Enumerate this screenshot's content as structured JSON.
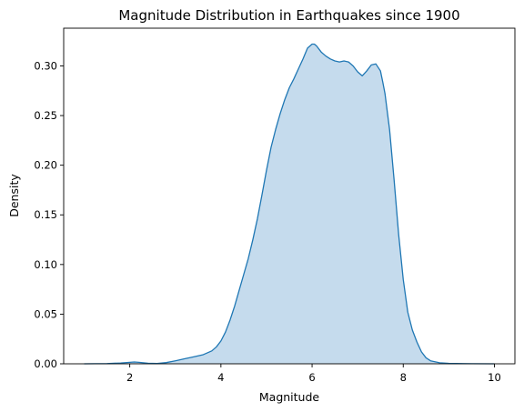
{
  "chart_data": {
    "type": "area",
    "title": "Magnitude Distribution in Earthquakes since 1900",
    "xlabel": "Magnitude",
    "ylabel": "Density",
    "xlim": [
      0.55,
      10.45
    ],
    "ylim": [
      0,
      0.338
    ],
    "xticks": [
      2,
      4,
      6,
      8,
      10
    ],
    "yticks": [
      0.0,
      0.05,
      0.1,
      0.15,
      0.2,
      0.25,
      0.3
    ],
    "xtick_labels": [
      "2",
      "4",
      "6",
      "8",
      "10"
    ],
    "ytick_labels": [
      "0.00",
      "0.05",
      "0.10",
      "0.15",
      "0.20",
      "0.25",
      "0.30"
    ],
    "grid": false,
    "legend": "none",
    "line_color": "#1f77b4",
    "fill_color": "#c5dbed",
    "series": [
      {
        "x": [
          1.0,
          1.5,
          1.8,
          2.0,
          2.1,
          2.2,
          2.4,
          2.6,
          2.8,
          3.0,
          3.2,
          3.4,
          3.6,
          3.8,
          3.9,
          4.0,
          4.1,
          4.2,
          4.3,
          4.4,
          4.5,
          4.6,
          4.7,
          4.8,
          4.9,
          5.0,
          5.1,
          5.2,
          5.3,
          5.4,
          5.5,
          5.6,
          5.7,
          5.8,
          5.9,
          6.0,
          6.05,
          6.1,
          6.2,
          6.3,
          6.4,
          6.5,
          6.6,
          6.7,
          6.8,
          6.9,
          7.0,
          7.1,
          7.2,
          7.3,
          7.4,
          7.5,
          7.55,
          7.6,
          7.7,
          7.8,
          7.9,
          8.0,
          8.1,
          8.2,
          8.3,
          8.4,
          8.5,
          8.6,
          8.8,
          9.0,
          9.5,
          10.0
        ],
        "y": [
          0.0,
          0.0002,
          0.0008,
          0.0015,
          0.0018,
          0.0015,
          0.0006,
          0.0003,
          0.0012,
          0.003,
          0.005,
          0.007,
          0.009,
          0.013,
          0.017,
          0.023,
          0.032,
          0.044,
          0.058,
          0.074,
          0.09,
          0.106,
          0.125,
          0.146,
          0.17,
          0.195,
          0.218,
          0.236,
          0.252,
          0.266,
          0.278,
          0.287,
          0.297,
          0.307,
          0.318,
          0.322,
          0.322,
          0.32,
          0.314,
          0.31,
          0.307,
          0.305,
          0.304,
          0.305,
          0.304,
          0.3,
          0.294,
          0.29,
          0.295,
          0.301,
          0.302,
          0.295,
          0.284,
          0.272,
          0.236,
          0.185,
          0.13,
          0.085,
          0.052,
          0.034,
          0.022,
          0.012,
          0.006,
          0.003,
          0.001,
          0.0004,
          0.0001,
          0.0
        ]
      }
    ]
  }
}
